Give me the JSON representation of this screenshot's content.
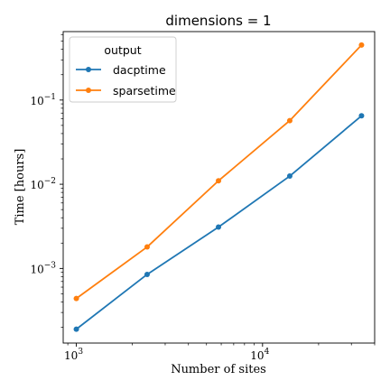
{
  "chart_data": {
    "type": "line",
    "title": "dimensions = 1",
    "xlabel": "Number of sites",
    "ylabel": "Time [hours]",
    "xscale": "log",
    "yscale": "log",
    "xlim": [
      850,
      40000
    ],
    "ylim": [
      0.00013,
      0.65
    ],
    "grid": false,
    "legend": {
      "title": "output",
      "placement": "top-left"
    },
    "x_ticks": [
      {
        "value": 1000,
        "base": "10",
        "exp": "3"
      },
      {
        "value": 10000,
        "base": "10",
        "exp": "4"
      }
    ],
    "y_ticks": [
      {
        "value": 0.001,
        "base": "10",
        "exp": "−3"
      },
      {
        "value": 0.01,
        "base": "10",
        "exp": "−2"
      },
      {
        "value": 0.1,
        "base": "10",
        "exp": "−1"
      }
    ],
    "x": [
      1000,
      2400,
      5800,
      14000,
      34000
    ],
    "series": [
      {
        "name": "dacptime",
        "color": "#1f77b4",
        "values": [
          0.00019,
          0.00085,
          0.0031,
          0.0125,
          0.065
        ]
      },
      {
        "name": "sparsetime",
        "color": "#ff7f0e",
        "values": [
          0.00044,
          0.0018,
          0.011,
          0.057,
          0.45
        ]
      }
    ]
  }
}
